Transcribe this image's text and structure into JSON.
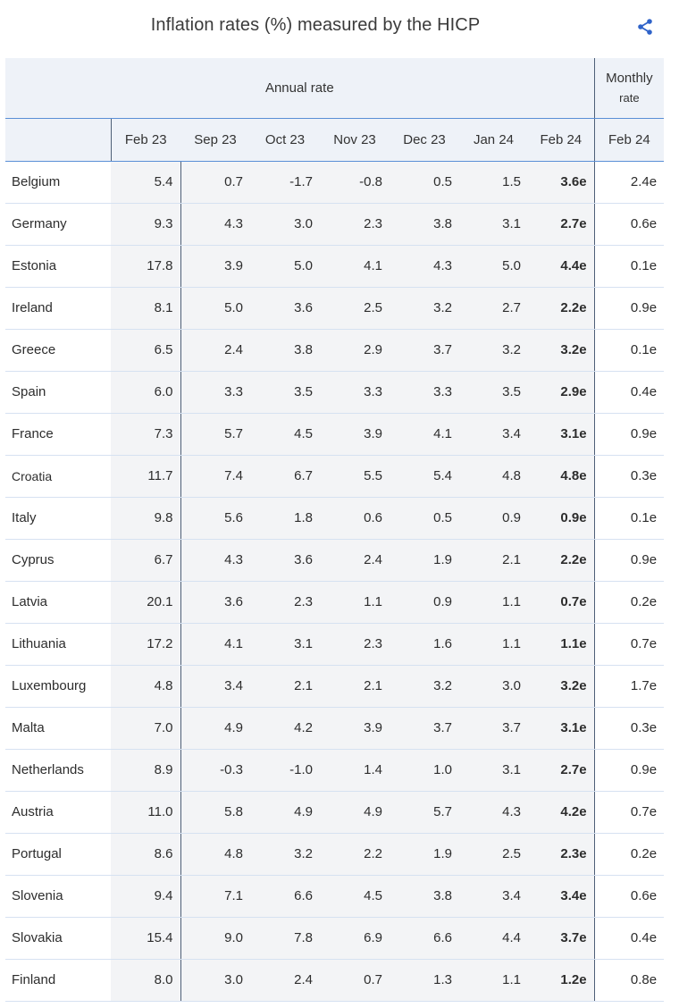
{
  "header": {
    "title": "Inflation rates (%) measured by the HICP",
    "share_icon": "share-icon",
    "accent": "#2f63c9"
  },
  "table": {
    "group_headers": {
      "annual": "Annual rate",
      "monthly_line1": "Monthly",
      "monthly_line2": "rate"
    },
    "columns": [
      "",
      "Feb 23",
      "Sep 23",
      "Oct 23",
      "Nov 23",
      "Dec 23",
      "Jan 24",
      "Feb 24",
      "Feb 24"
    ],
    "rows": [
      {
        "country": "Belgium",
        "values": [
          "5.4",
          "0.7",
          "-1.7",
          "-0.8",
          "0.5",
          "1.5",
          "3.6e",
          "2.4e"
        ]
      },
      {
        "country": "Germany",
        "values": [
          "9.3",
          "4.3",
          "3.0",
          "2.3",
          "3.8",
          "3.1",
          "2.7e",
          "0.6e"
        ]
      },
      {
        "country": "Estonia",
        "values": [
          "17.8",
          "3.9",
          "5.0",
          "4.1",
          "4.3",
          "5.0",
          "4.4e",
          "0.1e"
        ]
      },
      {
        "country": "Ireland",
        "values": [
          "8.1",
          "5.0",
          "3.6",
          "2.5",
          "3.2",
          "2.7",
          "2.2e",
          "0.9e"
        ]
      },
      {
        "country": "Greece",
        "values": [
          "6.5",
          "2.4",
          "3.8",
          "2.9",
          "3.7",
          "3.2",
          "3.2e",
          "0.1e"
        ]
      },
      {
        "country": "Spain",
        "values": [
          "6.0",
          "3.3",
          "3.5",
          "3.3",
          "3.3",
          "3.5",
          "2.9e",
          "0.4e"
        ]
      },
      {
        "country": "France",
        "values": [
          "7.3",
          "5.7",
          "4.5",
          "3.9",
          "4.1",
          "3.4",
          "3.1e",
          "0.9e"
        ]
      },
      {
        "country": "Croatia",
        "values": [
          "11.7",
          "7.4",
          "6.7",
          "5.5",
          "5.4",
          "4.8",
          "4.8e",
          "0.3e"
        ]
      },
      {
        "country": "Italy",
        "values": [
          "9.8",
          "5.6",
          "1.8",
          "0.6",
          "0.5",
          "0.9",
          "0.9e",
          "0.1e"
        ]
      },
      {
        "country": "Cyprus",
        "values": [
          "6.7",
          "4.3",
          "3.6",
          "2.4",
          "1.9",
          "2.1",
          "2.2e",
          "0.9e"
        ]
      },
      {
        "country": "Latvia",
        "values": [
          "20.1",
          "3.6",
          "2.3",
          "1.1",
          "0.9",
          "1.1",
          "0.7e",
          "0.2e"
        ]
      },
      {
        "country": "Lithuania",
        "values": [
          "17.2",
          "4.1",
          "3.1",
          "2.3",
          "1.6",
          "1.1",
          "1.1e",
          "0.7e"
        ]
      },
      {
        "country": "Luxembourg",
        "values": [
          "4.8",
          "3.4",
          "2.1",
          "2.1",
          "3.2",
          "3.0",
          "3.2e",
          "1.7e"
        ]
      },
      {
        "country": "Malta",
        "values": [
          "7.0",
          "4.9",
          "4.2",
          "3.9",
          "3.7",
          "3.7",
          "3.1e",
          "0.3e"
        ]
      },
      {
        "country": "Netherlands",
        "values": [
          "8.9",
          "-0.3",
          "-1.0",
          "1.4",
          "1.0",
          "3.1",
          "2.7e",
          "0.9e"
        ]
      },
      {
        "country": "Austria",
        "values": [
          "11.0",
          "5.8",
          "4.9",
          "4.9",
          "5.7",
          "4.3",
          "4.2e",
          "0.7e"
        ]
      },
      {
        "country": "Portugal",
        "values": [
          "8.6",
          "4.8",
          "3.2",
          "2.2",
          "1.9",
          "2.5",
          "2.3e",
          "0.2e"
        ]
      },
      {
        "country": "Slovenia",
        "values": [
          "9.4",
          "7.1",
          "6.6",
          "4.5",
          "3.8",
          "3.4",
          "3.4e",
          "0.6e"
        ]
      },
      {
        "country": "Slovakia",
        "values": [
          "15.4",
          "9.0",
          "7.8",
          "6.9",
          "6.6",
          "4.4",
          "3.7e",
          "0.4e"
        ]
      },
      {
        "country": "Finland",
        "values": [
          "8.0",
          "3.0",
          "2.4",
          "0.7",
          "1.3",
          "1.1",
          "1.2e",
          "0.8e"
        ]
      }
    ]
  }
}
